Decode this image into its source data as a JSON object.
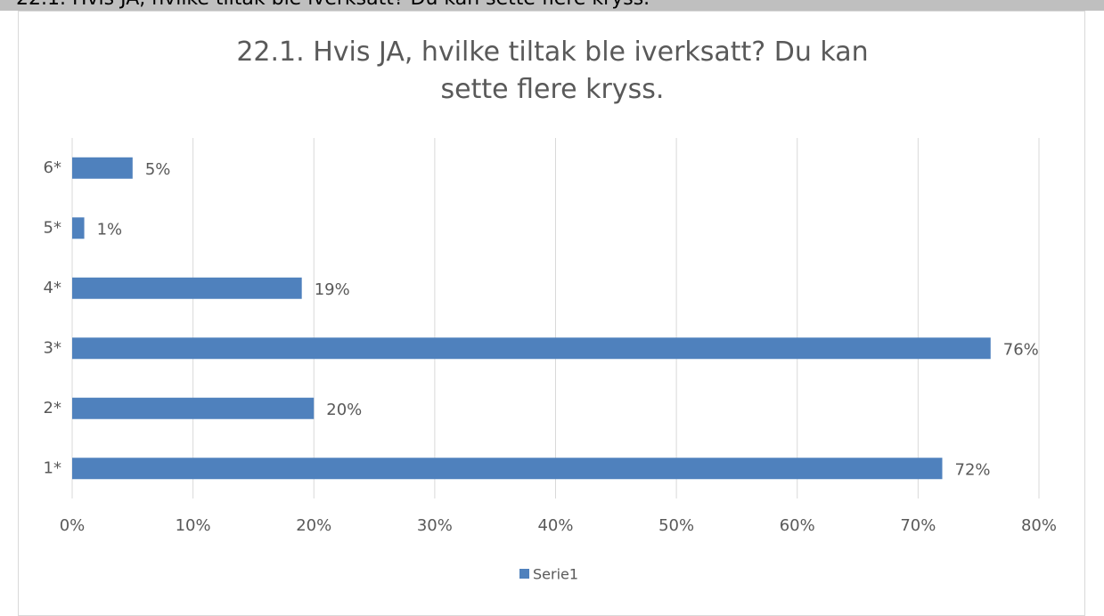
{
  "header": "22.1. Hvis JA, hvilke tiltak ble iverksatt? Du kan sette flere kryss.",
  "chart_data": {
    "type": "bar",
    "orientation": "horizontal",
    "title": "22.1. Hvis JA, hvilke tiltak ble iverksatt? Du kan sette flere kryss.",
    "categories": [
      "1*",
      "2*",
      "3*",
      "4*",
      "5*",
      "6*"
    ],
    "series": [
      {
        "name": "Serie1",
        "color": "#4f81bd",
        "values": [
          72,
          20,
          76,
          19,
          1,
          5
        ],
        "value_labels": [
          "72%",
          "20%",
          "76%",
          "19%",
          "1%",
          "5%"
        ]
      }
    ],
    "xlim": [
      0,
      80
    ],
    "xticks": [
      {
        "value": 0,
        "label": "0%"
      },
      {
        "value": 10,
        "label": "10%"
      },
      {
        "value": 20,
        "label": "20%"
      },
      {
        "value": 30,
        "label": "30%"
      },
      {
        "value": 40,
        "label": "40%"
      },
      {
        "value": 50,
        "label": "50%"
      },
      {
        "value": 60,
        "label": "60%"
      },
      {
        "value": 70,
        "label": "70%"
      },
      {
        "value": 80,
        "label": "80%"
      }
    ],
    "grid": true,
    "legend": "bottom"
  }
}
